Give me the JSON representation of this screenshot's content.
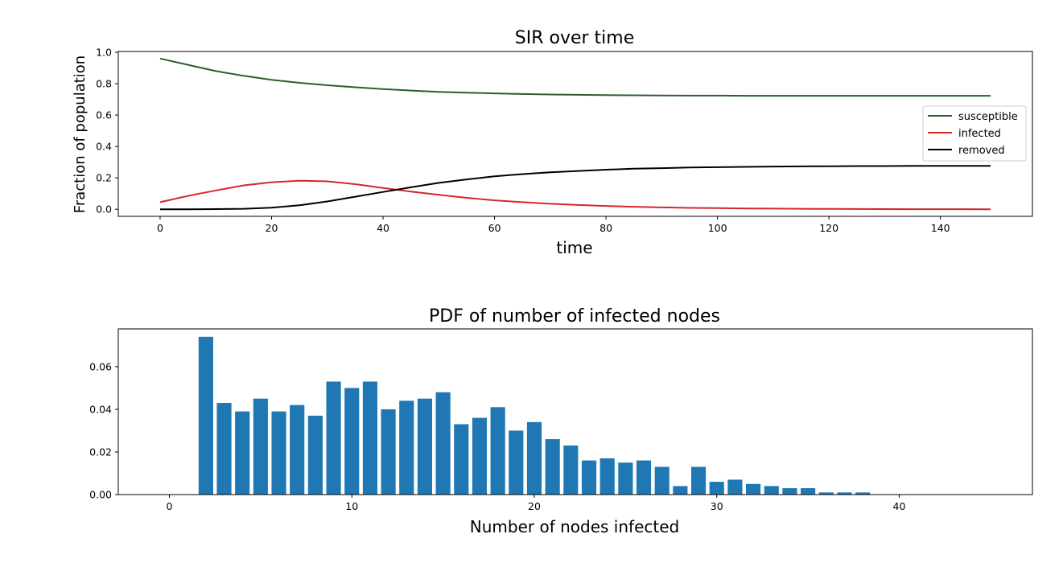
{
  "chart_data": [
    {
      "type": "line",
      "title": "SIR over time",
      "xlabel": "time",
      "ylabel": "Fraction of population",
      "xlim": [
        -7.5,
        156.5
      ],
      "ylim": [
        -0.045,
        1.005
      ],
      "xticks": [
        0,
        20,
        40,
        60,
        80,
        100,
        120,
        140
      ],
      "yticks": [
        0.0,
        0.2,
        0.4,
        0.6,
        0.8,
        1.0
      ],
      "grid": false,
      "legend_position": "center-right",
      "x": [
        0,
        5,
        10,
        15,
        20,
        25,
        30,
        35,
        40,
        45,
        50,
        55,
        60,
        65,
        70,
        75,
        80,
        85,
        90,
        95,
        100,
        105,
        110,
        115,
        120,
        125,
        130,
        135,
        140,
        145,
        149
      ],
      "series": [
        {
          "name": "susceptible",
          "color": "#2c5f2d",
          "values": [
            0.96,
            0.92,
            0.88,
            0.85,
            0.824,
            0.805,
            0.79,
            0.777,
            0.766,
            0.756,
            0.748,
            0.742,
            0.738,
            0.734,
            0.731,
            0.729,
            0.727,
            0.726,
            0.725,
            0.724,
            0.724,
            0.723,
            0.723,
            0.723,
            0.723,
            0.723,
            0.723,
            0.723,
            0.723,
            0.723,
            0.723
          ]
        },
        {
          "name": "infected",
          "color": "#d62728",
          "values": [
            0.045,
            0.085,
            0.12,
            0.152,
            0.172,
            0.182,
            0.178,
            0.16,
            0.136,
            0.113,
            0.092,
            0.073,
            0.057,
            0.045,
            0.035,
            0.027,
            0.021,
            0.016,
            0.012,
            0.009,
            0.007,
            0.005,
            0.004,
            0.003,
            0.002,
            0.0015,
            0.001,
            0.0008,
            0.0006,
            0.0004,
            0.0003
          ]
        },
        {
          "name": "removed",
          "color": "#000000",
          "values": [
            0.0,
            0.0,
            0.001,
            0.003,
            0.01,
            0.025,
            0.05,
            0.08,
            0.11,
            0.14,
            0.168,
            0.19,
            0.21,
            0.224,
            0.235,
            0.244,
            0.252,
            0.258,
            0.262,
            0.266,
            0.268,
            0.27,
            0.272,
            0.273,
            0.274,
            0.275,
            0.275,
            0.276,
            0.276,
            0.276,
            0.276
          ]
        }
      ]
    },
    {
      "type": "bar",
      "title": "PDF of number of infected nodes",
      "xlabel": "Number of nodes infected",
      "ylabel": "",
      "xlim": [
        -2.8,
        47.3
      ],
      "ylim": [
        0,
        0.0777
      ],
      "xticks": [
        0,
        10,
        20,
        30,
        40
      ],
      "yticks": [
        0.0,
        0.02,
        0.04,
        0.06
      ],
      "ytick_labels": [
        "0.00",
        "0.02",
        "0.04",
        "0.06"
      ],
      "grid": false,
      "bar_color": "#1f77b4",
      "bar_width": 0.8,
      "categories": [
        2,
        3,
        4,
        5,
        6,
        7,
        8,
        9,
        10,
        11,
        12,
        13,
        14,
        15,
        16,
        17,
        18,
        19,
        20,
        21,
        22,
        23,
        24,
        25,
        26,
        27,
        28,
        29,
        30,
        31,
        32,
        33,
        34,
        35,
        36,
        37,
        38
      ],
      "values": [
        0.074,
        0.043,
        0.039,
        0.045,
        0.039,
        0.042,
        0.037,
        0.053,
        0.05,
        0.053,
        0.04,
        0.044,
        0.045,
        0.048,
        0.033,
        0.036,
        0.041,
        0.03,
        0.034,
        0.026,
        0.023,
        0.016,
        0.017,
        0.015,
        0.016,
        0.013,
        0.004,
        0.013,
        0.006,
        0.007,
        0.005,
        0.004,
        0.003,
        0.003,
        0.001,
        0.001,
        0.001
      ]
    }
  ]
}
